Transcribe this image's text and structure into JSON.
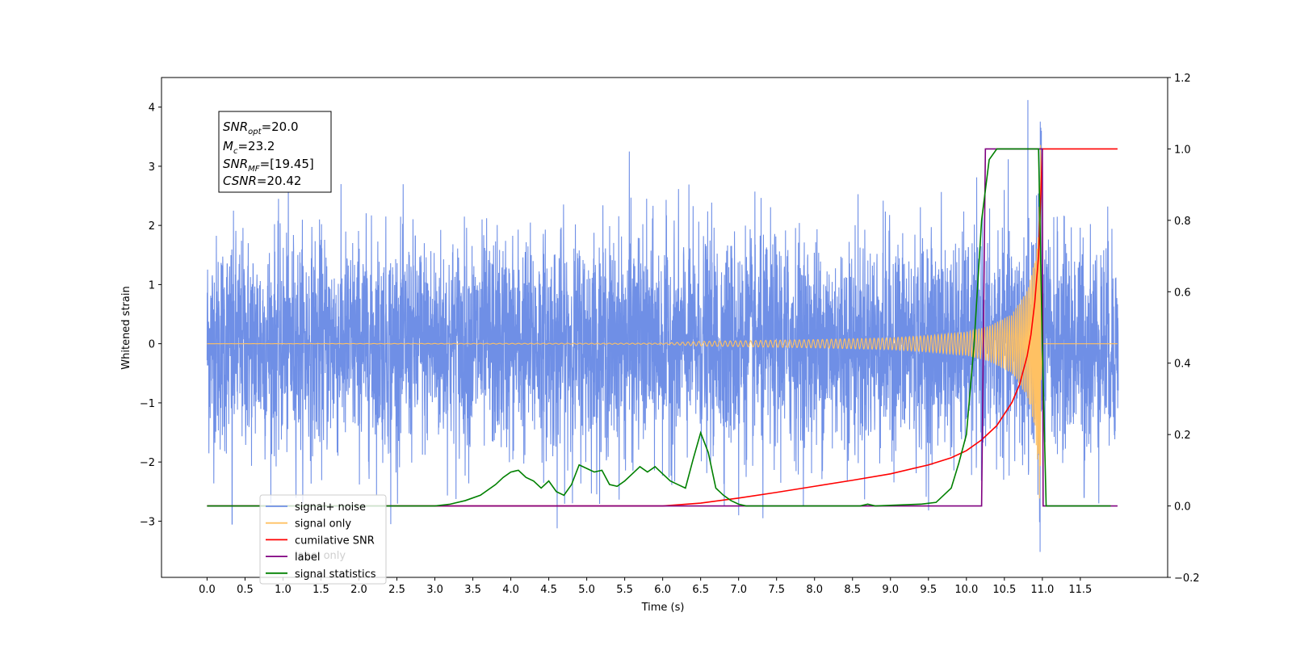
{
  "chart_data": {
    "type": "line",
    "xlabel": "Time (s)",
    "ylabel": "Whitened strain",
    "xlim": [
      -0.6,
      12.65
    ],
    "ylim_left": [
      -3.95,
      4.5
    ],
    "ylim_right": [
      -0.2,
      1.2
    ],
    "x_ticks": [
      "0.0",
      "0.5",
      "1.0",
      "1.5",
      "2.0",
      "2.5",
      "3.0",
      "3.5",
      "4.0",
      "4.5",
      "5.0",
      "5.5",
      "6.0",
      "6.5",
      "7.0",
      "7.5",
      "8.0",
      "8.5",
      "9.0",
      "9.5",
      "10.0",
      "10.5",
      "11.0",
      "11.5"
    ],
    "y_left_ticks": [
      "−3",
      "−2",
      "−1",
      "0",
      "1",
      "2",
      "3",
      "4"
    ],
    "y_right_ticks": [
      "−0.2",
      "0.0",
      "0.2",
      "0.4",
      "0.6",
      "0.8",
      "1.0",
      "1.2"
    ],
    "annotation": {
      "snr_opt_name": "SNR",
      "snr_opt_sub": "opt",
      "snr_opt_value": "=20.0",
      "mc_name": "M",
      "mc_sub": "c",
      "mc_value": "=23.2",
      "snr_mf_name": "SNR",
      "snr_mf_sub": "MF",
      "snr_mf_value": "=[19.45]",
      "csnr_name": "CSNR",
      "csnr_value": "=20.42"
    },
    "legend": {
      "placement": "lower-left",
      "entries": [
        {
          "label": "signal+ noise",
          "color": "#6f8fe6"
        },
        {
          "label": "signal only",
          "color": "#ffc163"
        },
        {
          "label": "cumilative SNR",
          "color": "#ff0000"
        },
        {
          "label": "label",
          "color": "#800080"
        },
        {
          "label": "signal statistics",
          "color": "#008000"
        }
      ],
      "hidden_label": "label only"
    },
    "series": [
      {
        "name": "signal+ noise",
        "axis": "left",
        "color": "#6f8fe6",
        "description": "noise with std ~1 from 0.0 to 12.0 s",
        "x_range": [
          0.0,
          12.0
        ],
        "noise_std": 0.9,
        "spikes": [
          [
            0.33,
            -3.05
          ],
          [
            1.07,
            2.65
          ],
          [
            2.42,
            -3.05
          ],
          [
            4.61,
            -3.12
          ],
          [
            5.56,
            3.25
          ],
          [
            7.0,
            -2.9
          ],
          [
            7.32,
            -2.95
          ],
          [
            10.81,
            4.12
          ],
          [
            10.97,
            -3.52
          ],
          [
            11.55,
            -2.6
          ]
        ]
      },
      {
        "name": "signal only",
        "axis": "left",
        "color": "#ffc163",
        "description": "chirp, amplitude growing toward merger",
        "x": [
          0,
          6.0,
          6.5,
          7.0,
          8.0,
          9.0,
          9.5,
          10.0,
          10.3,
          10.6,
          10.8,
          10.9,
          10.95,
          10.98,
          11.0
        ],
        "amplitude": [
          0,
          0.01,
          0.04,
          0.05,
          0.07,
          0.1,
          0.14,
          0.2,
          0.3,
          0.5,
          0.9,
          1.4,
          2.2,
          3.7,
          0
        ]
      },
      {
        "name": "cumilative SNR",
        "axis": "right",
        "color": "#ff0000",
        "x": [
          0,
          6.0,
          6.5,
          7.0,
          7.5,
          8.0,
          8.5,
          9.0,
          9.5,
          9.8,
          10.0,
          10.2,
          10.4,
          10.6,
          10.7,
          10.8,
          10.85,
          10.9,
          10.95,
          10.98,
          11.0,
          11.99
        ],
        "y": [
          0,
          0,
          0.008,
          0.022,
          0.038,
          0.055,
          0.072,
          0.09,
          0.115,
          0.135,
          0.155,
          0.185,
          0.225,
          0.29,
          0.34,
          0.42,
          0.48,
          0.57,
          0.7,
          0.87,
          1.0,
          1.0
        ]
      },
      {
        "name": "label",
        "axis": "right",
        "color": "#800080",
        "x": [
          0,
          10.2,
          10.25,
          11.0,
          11.01,
          11.99
        ],
        "y": [
          0,
          0,
          1.0,
          1.0,
          0,
          0
        ]
      },
      {
        "name": "signal statistics",
        "axis": "right",
        "color": "#008000",
        "x": [
          0,
          3.0,
          3.2,
          3.4,
          3.6,
          3.8,
          3.9,
          4.0,
          4.1,
          4.2,
          4.3,
          4.4,
          4.5,
          4.6,
          4.7,
          4.8,
          4.9,
          5.0,
          5.1,
          5.2,
          5.3,
          5.4,
          5.5,
          5.6,
          5.7,
          5.8,
          5.9,
          6.0,
          6.1,
          6.2,
          6.3,
          6.4,
          6.5,
          6.6,
          6.7,
          6.8,
          6.9,
          7.0,
          7.1,
          8.6,
          8.7,
          8.8,
          9.4,
          9.6,
          9.8,
          9.9,
          10.0,
          10.1,
          10.2,
          10.3,
          10.4,
          10.5,
          10.9,
          10.95,
          11.0,
          11.05,
          11.9
        ],
        "y": [
          0,
          0,
          0.005,
          0.015,
          0.03,
          0.06,
          0.08,
          0.095,
          0.1,
          0.08,
          0.07,
          0.05,
          0.07,
          0.04,
          0.03,
          0.06,
          0.115,
          0.105,
          0.095,
          0.1,
          0.06,
          0.055,
          0.07,
          0.09,
          0.11,
          0.095,
          0.11,
          0.09,
          0.07,
          0.06,
          0.05,
          0.13,
          0.205,
          0.15,
          0.05,
          0.03,
          0.015,
          0.005,
          0,
          0,
          0.005,
          0,
          0.005,
          0.01,
          0.05,
          0.12,
          0.2,
          0.45,
          0.8,
          0.97,
          1.0,
          1.0,
          1.0,
          1.0,
          0.45,
          0,
          0
        ]
      }
    ]
  }
}
